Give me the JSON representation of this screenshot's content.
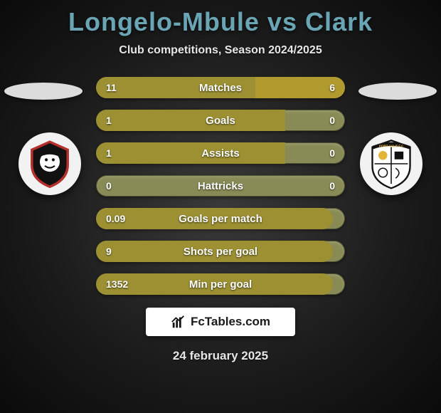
{
  "title": "Longelo-Mbule vs Clark",
  "subtitle": "Club competitions, Season 2024/2025",
  "date": "24 february 2025",
  "brand_text": "FcTables.com",
  "background": "#1a1a1a",
  "title_color": "#6aa5b5",
  "text_color": "#e6e6e6",
  "bar_neutral_color": "#888b55",
  "bar_left_color": "#9c9033",
  "bar_right_color": "#b09a2e",
  "bar_fontsize": 15,
  "crest_left": {
    "bg": "#f2f2f2",
    "shield": {
      "fill": "#111111",
      "stroke": "#b5302b",
      "face": "#ffffff"
    }
  },
  "crest_right": {
    "bg": "#f2f2f2",
    "shield": {
      "fill": "#ffffff",
      "stroke": "#111111",
      "ribbon": "#111111",
      "accent": "#e3b43a"
    }
  },
  "stats": [
    {
      "label": "Matches",
      "left_val": "11",
      "right_val": "6",
      "left_pct": 64,
      "right_pct": 36
    },
    {
      "label": "Goals",
      "left_val": "1",
      "right_val": "0",
      "left_pct": 76,
      "right_pct": 0
    },
    {
      "label": "Assists",
      "left_val": "1",
      "right_val": "0",
      "left_pct": 76,
      "right_pct": 0
    },
    {
      "label": "Hattricks",
      "left_val": "0",
      "right_val": "0",
      "left_pct": 0,
      "right_pct": 0
    },
    {
      "label": "Goals per match",
      "left_val": "0.09",
      "right_val": "",
      "left_pct": 95,
      "right_pct": 0
    },
    {
      "label": "Shots per goal",
      "left_val": "9",
      "right_val": "",
      "left_pct": 95,
      "right_pct": 0
    },
    {
      "label": "Min per goal",
      "left_val": "1352",
      "right_val": "",
      "left_pct": 95,
      "right_pct": 0
    }
  ]
}
